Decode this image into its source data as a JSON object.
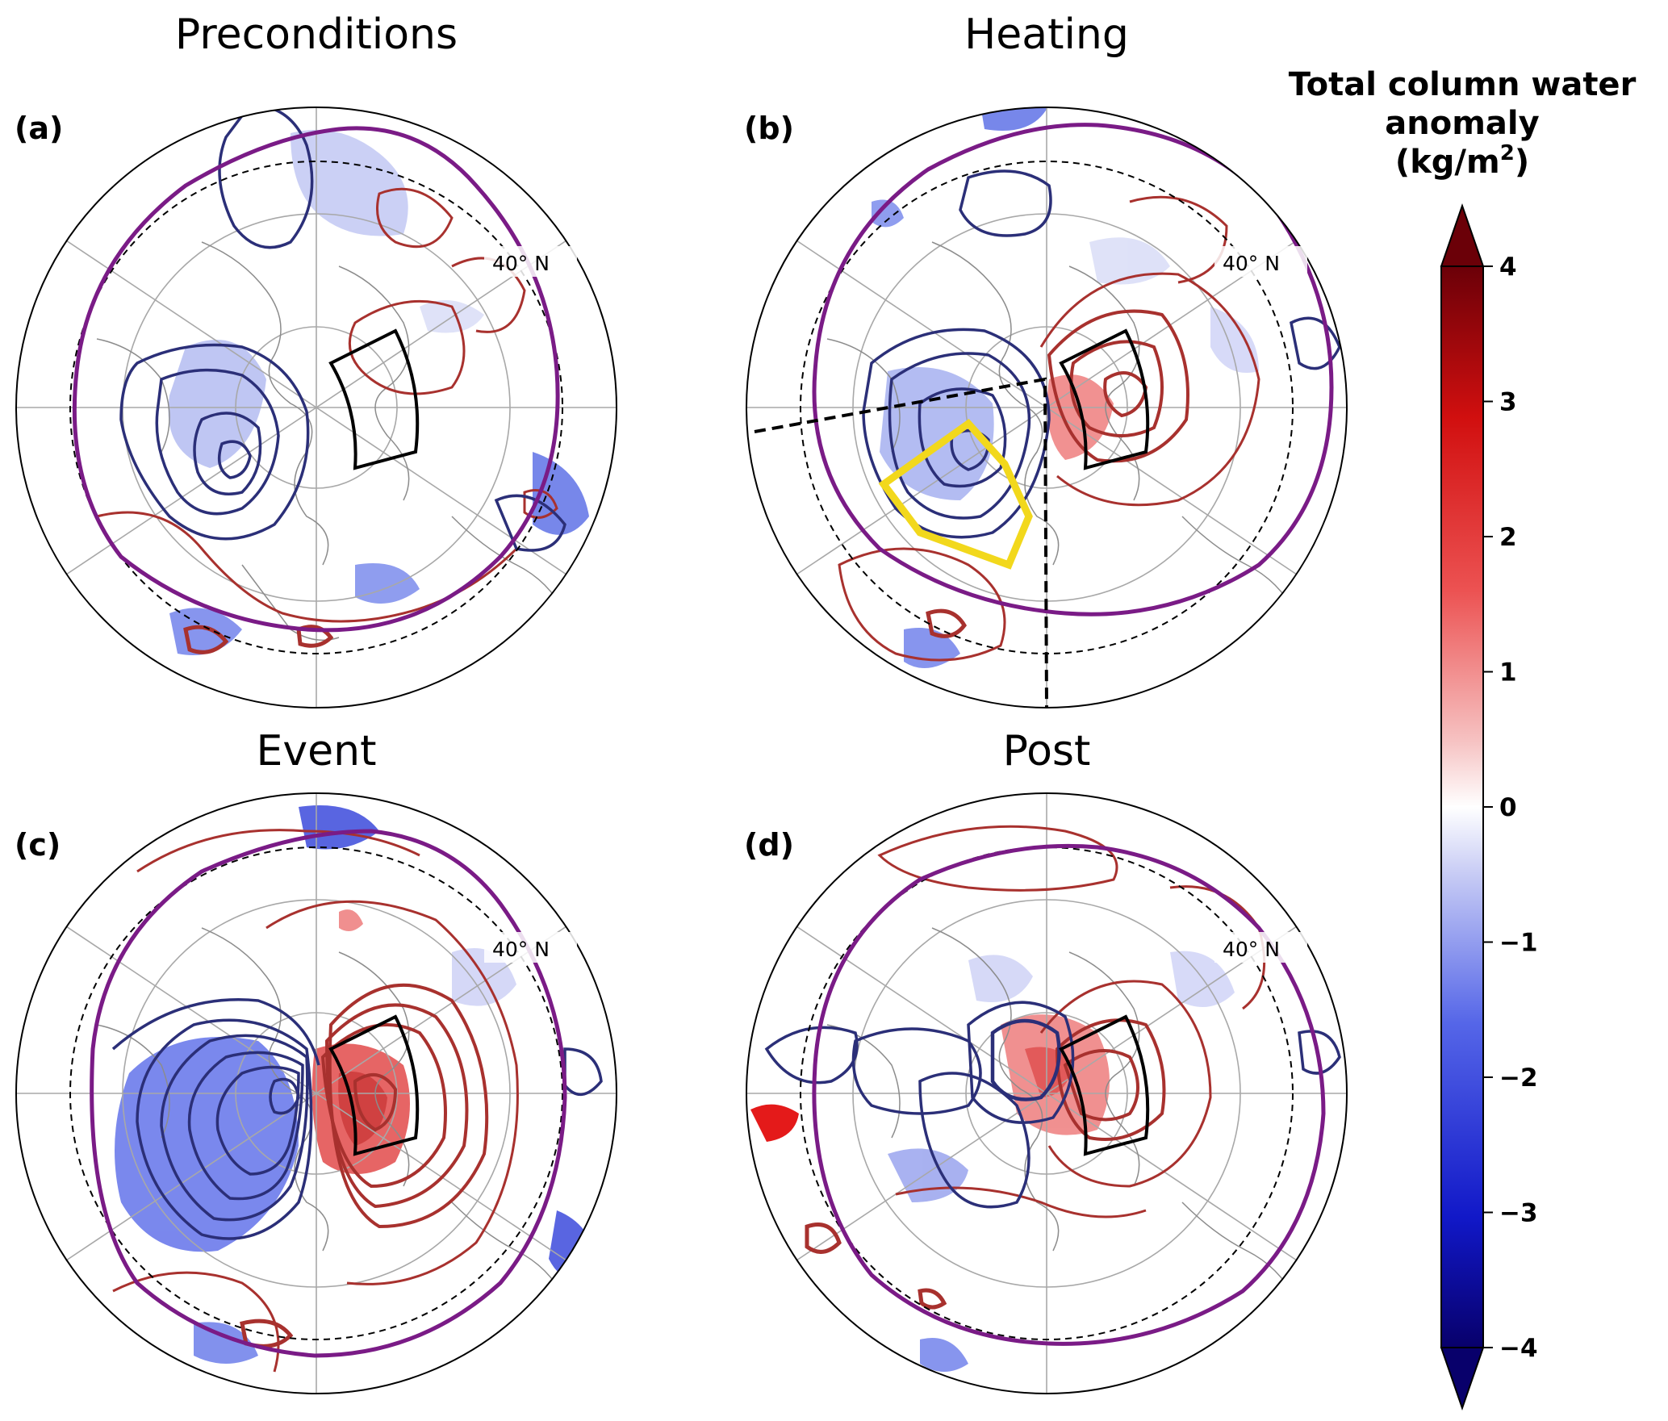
{
  "panels": [
    {
      "id": "a",
      "letter": "(a)",
      "title": "Preconditions",
      "lat_label": "40° N"
    },
    {
      "id": "b",
      "letter": "(b)",
      "title": "Heating",
      "lat_label": "40° N"
    },
    {
      "id": "c",
      "letter": "(c)",
      "title": "Event",
      "lat_label": "40° N"
    },
    {
      "id": "d",
      "letter": "(d)",
      "title": "Post",
      "lat_label": "40° N"
    }
  ],
  "colorbar": {
    "title_line1": "Total column water",
    "title_line2": "anomaly",
    "title_line3_pre": "(kg/m",
    "title_line3_sup": "2",
    "title_line3_post": ")",
    "ticks": [
      "4",
      "3",
      "2",
      "1",
      "0",
      "−1",
      "−2",
      "−3",
      "−4"
    ],
    "min": -4,
    "max": 4,
    "colors": {
      "low": "#08006b",
      "mid": "#ffffff",
      "high": "#6b0008"
    }
  },
  "colors": {
    "negative_contour": "#2b2f78",
    "positive_contour": "#a8312e",
    "boundary": "#7a1b86",
    "sector": "#000000",
    "highlight": "#f2d81c",
    "coast": "#8c8c8c"
  }
}
